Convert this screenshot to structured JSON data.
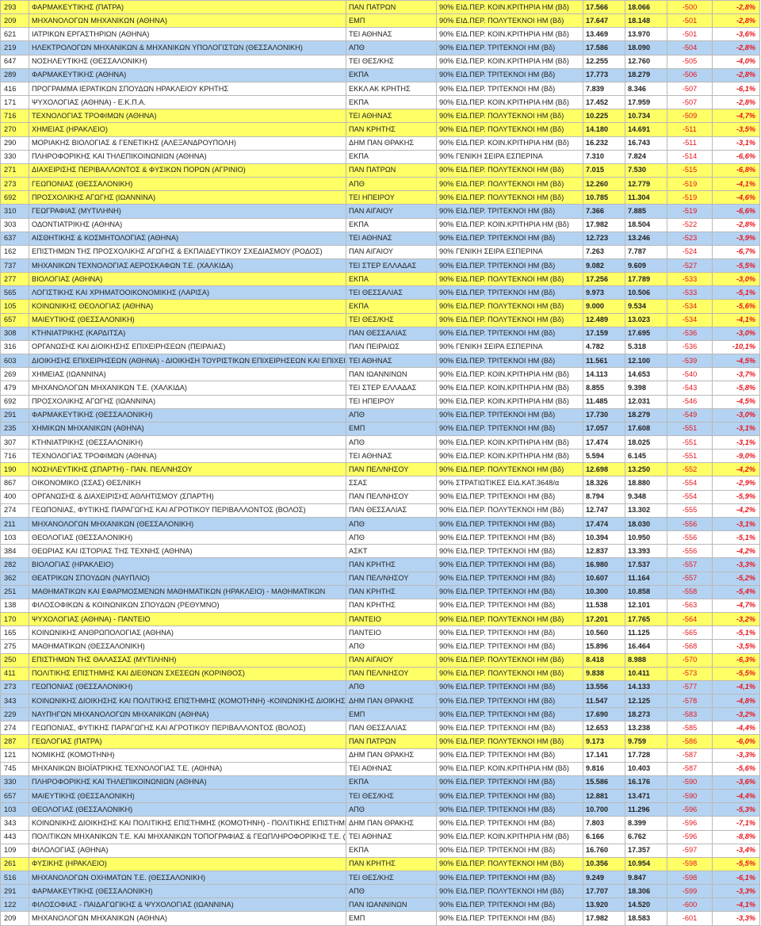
{
  "rows": [
    {
      "c": "yellow",
      "code": "293",
      "name": "ΦΑΡΜΑΚΕΥΤΙΚΗΣ (ΠΑΤΡΑ)",
      "inst": "ΠΑΝ ΠΑΤΡΩΝ",
      "cat": "90% ΕΙΔ.ΠΕΡ. ΚΟΙΝ.ΚΡΙΤΗΡΙΑ ΗΜ (Βδ)",
      "a": "17.566",
      "b": "18.066",
      "d": "-500",
      "p": "-2,8%"
    },
    {
      "c": "yellow",
      "code": "209",
      "name": "ΜΗΧΑΝΟΛΟΓΩΝ ΜΗΧΑΝΙΚΩΝ (ΑΘΗΝΑ)",
      "inst": "ΕΜΠ",
      "cat": "90% ΕΙΔ.ΠΕΡ. ΠΟΛΥΤΕΚΝΟΙ ΗΜ (Βδ)",
      "a": "17.647",
      "b": "18.148",
      "d": "-501",
      "p": "-2,8%"
    },
    {
      "c": "white",
      "code": "621",
      "name": "ΙΑΤΡΙΚΩΝ ΕΡΓΑΣΤΗΡΙΩΝ (ΑΘΗΝΑ)",
      "inst": "ΤΕΙ ΑΘΗΝΑΣ",
      "cat": "90% ΕΙΔ.ΠΕΡ. ΚΟΙΝ.ΚΡΙΤΗΡΙΑ ΗΜ (Βδ)",
      "a": "13.469",
      "b": "13.970",
      "d": "-501",
      "p": "-3,6%"
    },
    {
      "c": "blue",
      "code": "219",
      "name": "ΗΛΕΚΤΡΟΛΟΓΩΝ ΜΗΧΑΝΙΚΩΝ & ΜΗΧΑΝΙΚΩΝ ΥΠΟΛΟΓΙΣΤΩΝ (ΘΕΣΣΑΛΟΝΙΚΗ)",
      "inst": "ΑΠΘ",
      "cat": "90% ΕΙΔ.ΠΕΡ. ΤΡΙΤΕΚΝΟΙ ΗΜ (Βδ)",
      "a": "17.586",
      "b": "18.090",
      "d": "-504",
      "p": "-2,8%"
    },
    {
      "c": "white",
      "code": "647",
      "name": "ΝΟΣΗΛΕΥΤΙΚΗΣ (ΘΕΣΣΑΛΟΝΙΚΗ)",
      "inst": "ΤΕΙ ΘΕΣ/ΚΗΣ",
      "cat": "90% ΕΙΔ.ΠΕΡ. ΚΟΙΝ.ΚΡΙΤΗΡΙΑ ΗΜ (Βδ)",
      "a": "12.255",
      "b": "12.760",
      "d": "-505",
      "p": "-4,0%"
    },
    {
      "c": "blue",
      "code": "289",
      "name": "ΦΑΡΜΑΚΕΥΤΙΚΗΣ (ΑΘΗΝΑ)",
      "inst": "ΕΚΠΑ",
      "cat": "90% ΕΙΔ.ΠΕΡ. ΤΡΙΤΕΚΝΟΙ ΗΜ (Βδ)",
      "a": "17.773",
      "b": "18.279",
      "d": "-506",
      "p": "-2,8%"
    },
    {
      "c": "white",
      "code": "416",
      "name": "ΠΡΟΓΡΑΜΜΑ ΙΕΡΑΤΙΚΩΝ ΣΠΟΥΔΩΝ ΗΡΑΚΛΕΙΟΥ ΚΡΗΤΗΣ",
      "inst": "ΕΚΚΛ ΑΚ ΚΡΗΤΗΣ",
      "cat": "90% ΕΙΔ.ΠΕΡ. ΤΡΙΤΕΚΝΟΙ ΗΜ (Βδ)",
      "a": "7.839",
      "b": "8.346",
      "d": "-507",
      "p": "-6,1%"
    },
    {
      "c": "white",
      "code": "171",
      "name": "ΨΥΧΟΛΟΓΙΑΣ (ΑΘΗΝΑ) - Ε.Κ.Π.Α.",
      "inst": "ΕΚΠΑ",
      "cat": "90% ΕΙΔ.ΠΕΡ. ΚΟΙΝ.ΚΡΙΤΗΡΙΑ ΗΜ (Βδ)",
      "a": "17.452",
      "b": "17.959",
      "d": "-507",
      "p": "-2,8%"
    },
    {
      "c": "yellow",
      "code": "716",
      "name": "ΤΕΧΝΟΛΟΓΙΑΣ ΤΡΟΦΙΜΩΝ (ΑΘΗΝΑ)",
      "inst": "ΤΕΙ ΑΘΗΝΑΣ",
      "cat": "90% ΕΙΔ.ΠΕΡ. ΠΟΛΥΤΕΚΝΟΙ ΗΜ (Βδ)",
      "a": "10.225",
      "b": "10.734",
      "d": "-509",
      "p": "-4,7%"
    },
    {
      "c": "yellow",
      "code": "270",
      "name": "ΧΗΜΕΙΑΣ (ΗΡΑΚΛΕΙΟ)",
      "inst": "ΠΑΝ ΚΡΗΤΗΣ",
      "cat": "90% ΕΙΔ.ΠΕΡ. ΠΟΛΥΤΕΚΝΟΙ ΗΜ (Βδ)",
      "a": "14.180",
      "b": "14.691",
      "d": "-511",
      "p": "-3,5%"
    },
    {
      "c": "white",
      "code": "290",
      "name": "ΜΟΡΙΑΚΗΣ ΒΙΟΛΟΓΙΑΣ & ΓΕΝΕΤΙΚΗΣ (ΑΛΕΞΑΝΔΡΟΥΠΟΛΗ)",
      "inst": "ΔΗΜ ΠΑΝ ΘΡΑΚΗΣ",
      "cat": "90% ΕΙΔ.ΠΕΡ. ΚΟΙΝ.ΚΡΙΤΗΡΙΑ ΗΜ (Βδ)",
      "a": "16.232",
      "b": "16.743",
      "d": "-511",
      "p": "-3,1%"
    },
    {
      "c": "white",
      "code": "330",
      "name": "ΠΛΗΡΟΦΟΡΙΚΗΣ ΚΑΙ ΤΗΛΕΠΙΚΟΙΝΩΝΙΩΝ (ΑΘΗΝΑ)",
      "inst": "ΕΚΠΑ",
      "cat": "90% ΓΕΝΙΚΗ  ΣΕΙΡΑ ΕΣΠΕΡΙΝΑ",
      "a": "7.310",
      "b": "7.824",
      "d": "-514",
      "p": "-6,6%"
    },
    {
      "c": "yellow",
      "code": "271",
      "name": "ΔΙΑΧΕΙΡΙΣΗΣ ΠΕΡΙΒΑΛΛΟΝΤΟΣ & ΦΥΣΙΚΩΝ ΠΟΡΩΝ (ΑΓΡΙΝΙΟ)",
      "inst": "ΠΑΝ ΠΑΤΡΩΝ",
      "cat": "90% ΕΙΔ.ΠΕΡ. ΠΟΛΥΤΕΚΝΟΙ ΗΜ (Βδ)",
      "a": "7.015",
      "b": "7.530",
      "d": "-515",
      "p": "-6,8%"
    },
    {
      "c": "yellow",
      "code": "273",
      "name": "ΓΕΩΠΟΝΙΑΣ (ΘΕΣΣΑΛΟΝΙΚΗ)",
      "inst": "ΑΠΘ",
      "cat": "90% ΕΙΔ.ΠΕΡ. ΠΟΛΥΤΕΚΝΟΙ ΗΜ (Βδ)",
      "a": "12.260",
      "b": "12.779",
      "d": "-519",
      "p": "-4,1%"
    },
    {
      "c": "yellow",
      "code": "692",
      "name": "ΠΡΟΣΧΟΛΙΚΗΣ ΑΓΩΓΗΣ (ΙΩΑΝΝΙΝΑ)",
      "inst": "ΤΕΙ ΗΠΕΙΡΟΥ",
      "cat": "90% ΕΙΔ.ΠΕΡ. ΠΟΛΥΤΕΚΝΟΙ ΗΜ (Βδ)",
      "a": "10.785",
      "b": "11.304",
      "d": "-519",
      "p": "-4,6%"
    },
    {
      "c": "blue",
      "code": "310",
      "name": "ΓΕΩΓΡΑΦΙΑΣ (ΜΥΤΙΛΗΝΗ)",
      "inst": "ΠΑΝ ΑΙΓΑΙΟΥ",
      "cat": "90% ΕΙΔ.ΠΕΡ. ΤΡΙΤΕΚΝΟΙ ΗΜ (Βδ)",
      "a": "7.366",
      "b": "7.885",
      "d": "-519",
      "p": "-6,6%"
    },
    {
      "c": "white",
      "code": "303",
      "name": "ΟΔΟΝΤΙΑΤΡΙΚΗΣ (ΑΘΗΝΑ)",
      "inst": "ΕΚΠΑ",
      "cat": "90% ΕΙΔ.ΠΕΡ. ΚΟΙΝ.ΚΡΙΤΗΡΙΑ ΗΜ (Βδ)",
      "a": "17.982",
      "b": "18.504",
      "d": "-522",
      "p": "-2,8%"
    },
    {
      "c": "blue",
      "code": "637",
      "name": "ΑΙΣΘΗΤΙΚΗΣ & ΚΟΣΜΗΤΟΛΟΓΙΑΣ (ΑΘΗΝΑ)",
      "inst": "ΤΕΙ ΑΘΗΝΑΣ",
      "cat": "90% ΕΙΔ.ΠΕΡ. ΤΡΙΤΕΚΝΟΙ ΗΜ (Βδ)",
      "a": "12.723",
      "b": "13.246",
      "d": "-523",
      "p": "-3,9%"
    },
    {
      "c": "white",
      "code": "162",
      "name": "ΕΠΙΣΤΗΜΩΝ ΤΗΣ ΠΡΟΣΧΟΛΙΚΗΣ ΑΓΩΓΗΣ & ΕΚΠΑΙΔΕΥΤΙΚΟΥ ΣΧΕΔΙΑΣΜΟΥ (ΡΟΔΟΣ)",
      "inst": "ΠΑΝ ΑΙΓΑΙΟΥ",
      "cat": "90% ΓΕΝΙΚΗ  ΣΕΙΡΑ ΕΣΠΕΡΙΝΑ",
      "a": "7.263",
      "b": "7.787",
      "d": "-524",
      "p": "-6,7%"
    },
    {
      "c": "blue",
      "code": "737",
      "name": "ΜΗΧΑΝΙΚΩΝ ΤΕΧΝΟΛΟΓΙΑΣ ΑΕΡΟΣΚΑΦΩΝ Τ.Ε. (ΧΑΛΚΙΔΑ)",
      "inst": "ΤΕΙ  ΣΤΕΡ ΕΛΛΑΔΑΣ",
      "cat": "90% ΕΙΔ.ΠΕΡ. ΤΡΙΤΕΚΝΟΙ ΗΜ (Βδ)",
      "a": "9.082",
      "b": "9.609",
      "d": "-527",
      "p": "-5,5%"
    },
    {
      "c": "yellow",
      "code": "277",
      "name": "ΒΙΟΛΟΓΙΑΣ (ΑΘΗΝΑ)",
      "inst": "ΕΚΠΑ",
      "cat": "90% ΕΙΔ.ΠΕΡ. ΠΟΛΥΤΕΚΝΟΙ ΗΜ (Βδ)",
      "a": "17.256",
      "b": "17.789",
      "d": "-533",
      "p": "-3,0%"
    },
    {
      "c": "blue",
      "code": "565",
      "name": "ΛΟΓΙΣΤΙΚΗΣ ΚΑΙ ΧΡΗΜΑΤΟΟΙΚΟΝΟΜΙΚΗΣ (ΛΑΡΙΣΑ)",
      "inst": "ΤΕΙ ΘΕΣΣΑΛΙΑΣ",
      "cat": "90% ΕΙΔ.ΠΕΡ. ΤΡΙΤΕΚΝΟΙ ΗΜ (Βδ)",
      "a": "9.973",
      "b": "10.506",
      "d": "-533",
      "p": "-5,1%"
    },
    {
      "c": "yellow",
      "code": "105",
      "name": "ΚΟΙΝΩΝΙΚΗΣ ΘΕΟΛΟΓΙΑΣ (ΑΘΗΝΑ)",
      "inst": "ΕΚΠΑ",
      "cat": "90% ΕΙΔ.ΠΕΡ. ΠΟΛΥΤΕΚΝΟΙ ΗΜ (Βδ)",
      "a": "9.000",
      "b": "9.534",
      "d": "-534",
      "p": "-5,6%"
    },
    {
      "c": "yellow",
      "code": "657",
      "name": "ΜΑΙΕΥΤΙΚΗΣ (ΘΕΣΣΑΛΟΝΙΚΗ)",
      "inst": "ΤΕΙ ΘΕΣ/ΚΗΣ",
      "cat": "90% ΕΙΔ.ΠΕΡ. ΠΟΛΥΤΕΚΝΟΙ ΗΜ (Βδ)",
      "a": "12.489",
      "b": "13.023",
      "d": "-534",
      "p": "-4,1%"
    },
    {
      "c": "blue",
      "code": "308",
      "name": "ΚΤΗΝΙΑΤΡΙΚΗΣ (ΚΑΡΔΙΤΣΑ)",
      "inst": "ΠΑΝ ΘΕΣΣΑΛΙΑΣ",
      "cat": "90% ΕΙΔ.ΠΕΡ. ΤΡΙΤΕΚΝΟΙ ΗΜ (Βδ)",
      "a": "17.159",
      "b": "17.695",
      "d": "-536",
      "p": "-3,0%"
    },
    {
      "c": "white",
      "code": "316",
      "name": "ΟΡΓΑΝΩΣΗΣ ΚΑΙ ΔΙΟΙΚΗΣΗΣ ΕΠΙΧΕΙΡΗΣΕΩΝ (ΠΕΙΡΑΙΑΣ)",
      "inst": "ΠΑΝ ΠΕΙΡΑΙΩΣ",
      "cat": "90% ΓΕΝΙΚΗ  ΣΕΙΡΑ ΕΣΠΕΡΙΝΑ",
      "a": "4.782",
      "b": "5.318",
      "d": "-536",
      "p": "-10,1%"
    },
    {
      "c": "blue",
      "code": "603",
      "name": "ΔΙΟΙΚΗΣΗΣ ΕΠΙΧΕΙΡΗΣΕΩΝ (ΑΘΗΝΑ) - ΔΙΟΙΚΗΣΗ ΤΟΥΡΙΣΤΙΚΩΝ ΕΠΙΧΕΙΡΗΣΕΩΝ ΚΑΙ ΕΠΙΧΕΙΡΗΣΕΩΝ",
      "inst": "ΤΕΙ ΑΘΗΝΑΣ",
      "cat": "90% ΕΙΔ.ΠΕΡ. ΤΡΙΤΕΚΝΟΙ ΗΜ (Βδ)",
      "a": "11.561",
      "b": "12.100",
      "d": "-539",
      "p": "-4,5%"
    },
    {
      "c": "white",
      "code": "269",
      "name": "ΧΗΜΕΙΑΣ (ΙΩΑΝΝΙΝΑ)",
      "inst": "ΠΑΝ ΙΩΑΝΝΙΝΩΝ",
      "cat": "90% ΕΙΔ.ΠΕΡ. ΚΟΙΝ.ΚΡΙΤΗΡΙΑ ΗΜ (Βδ)",
      "a": "14.113",
      "b": "14.653",
      "d": "-540",
      "p": "-3,7%"
    },
    {
      "c": "white",
      "code": "479",
      "name": "ΜΗΧΑΝΟΛΟΓΩΝ ΜΗΧΑΝΙΚΩΝ Τ.Ε. (ΧΑΛΚΙΔΑ)",
      "inst": "ΤΕΙ  ΣΤΕΡ ΕΛΛΑΔΑΣ",
      "cat": "90% ΕΙΔ.ΠΕΡ. ΚΟΙΝ.ΚΡΙΤΗΡΙΑ ΗΜ (Βδ)",
      "a": "8.855",
      "b": "9.398",
      "d": "-543",
      "p": "-5,8%"
    },
    {
      "c": "white",
      "code": "692",
      "name": "ΠΡΟΣΧΟΛΙΚΗΣ ΑΓΩΓΗΣ (ΙΩΑΝΝΙΝΑ)",
      "inst": "ΤΕΙ ΗΠΕΙΡΟΥ",
      "cat": "90% ΕΙΔ.ΠΕΡ. ΚΟΙΝ.ΚΡΙΤΗΡΙΑ ΗΜ (Βδ)",
      "a": "11.485",
      "b": "12.031",
      "d": "-546",
      "p": "-4,5%"
    },
    {
      "c": "blue",
      "code": "291",
      "name": "ΦΑΡΜΑΚΕΥΤΙΚΗΣ (ΘΕΣΣΑΛΟΝΙΚΗ)",
      "inst": "ΑΠΘ",
      "cat": "90% ΕΙΔ.ΠΕΡ. ΤΡΙΤΕΚΝΟΙ ΗΜ (Βδ)",
      "a": "17.730",
      "b": "18.279",
      "d": "-549",
      "p": "-3,0%"
    },
    {
      "c": "blue",
      "code": "235",
      "name": "ΧΗΜΙΚΩΝ ΜΗΧΑΝΙΚΩΝ (ΑΘΗΝΑ)",
      "inst": "ΕΜΠ",
      "cat": "90% ΕΙΔ.ΠΕΡ. ΤΡΙΤΕΚΝΟΙ ΗΜ (Βδ)",
      "a": "17.057",
      "b": "17.608",
      "d": "-551",
      "p": "-3,1%"
    },
    {
      "c": "white",
      "code": "307",
      "name": "ΚΤΗΝΙΑΤΡΙΚΗΣ (ΘΕΣΣΑΛΟΝΙΚΗ)",
      "inst": "ΑΠΘ",
      "cat": "90% ΕΙΔ.ΠΕΡ. ΚΟΙΝ.ΚΡΙΤΗΡΙΑ ΗΜ (Βδ)",
      "a": "17.474",
      "b": "18.025",
      "d": "-551",
      "p": "-3,1%"
    },
    {
      "c": "white",
      "code": "716",
      "name": "ΤΕΧΝΟΛΟΓΙΑΣ ΤΡΟΦΙΜΩΝ (ΑΘΗΝΑ)",
      "inst": "ΤΕΙ ΑΘΗΝΑΣ",
      "cat": "90% ΕΙΔ.ΠΕΡ. ΚΟΙΝ.ΚΡΙΤΗΡΙΑ ΗΜ (Βδ)",
      "a": "5.594",
      "b": "6.145",
      "d": "-551",
      "p": "-9,0%"
    },
    {
      "c": "yellow",
      "code": "190",
      "name": "ΝΟΣΗΛΕΥΤΙΚΗΣ (ΣΠΑΡΤΗ) - ΠΑΝ. ΠΕΛ/ΝΗΣΟΥ",
      "inst": "ΠΑΝ ΠΕΛ/ΝΗΣΟΥ",
      "cat": "90% ΕΙΔ.ΠΕΡ. ΠΟΛΥΤΕΚΝΟΙ ΗΜ (Βδ)",
      "a": "12.698",
      "b": "13.250",
      "d": "-552",
      "p": "-4,2%"
    },
    {
      "c": "white",
      "code": "867",
      "name": "ΟΙΚΟΝΟΜΙΚΟ (ΣΣΑΣ) ΘΕΣ/ΝΙΚΗ",
      "inst": "ΣΣΑΣ",
      "cat": "90% ΣΤΡΑΤΙΩΤΙΚΕΣ ΕΙΔ.ΚΑΤ.3648/α",
      "a": "18.326",
      "b": "18.880",
      "d": "-554",
      "p": "-2,9%"
    },
    {
      "c": "white",
      "code": "400",
      "name": "ΟΡΓΑΝΩΣΗΣ & ΔΙΑΧΕΙΡΙΣΗΣ ΑΘΛΗΤΙΣΜΟΥ (ΣΠΑΡΤΗ)",
      "inst": "ΠΑΝ ΠΕΛ/ΝΗΣΟΥ",
      "cat": "90% ΕΙΔ.ΠΕΡ. ΤΡΙΤΕΚΝΟΙ ΗΜ (Βδ)",
      "a": "8.794",
      "b": "9.348",
      "d": "-554",
      "p": "-5,9%"
    },
    {
      "c": "white",
      "code": "274",
      "name": "ΓΕΩΠΟΝΙΑΣ, ΦΥΤΙΚΗΣ ΠΑΡΑΓΩΓΗΣ ΚΑΙ ΑΓΡΟΤΙΚΟΥ ΠΕΡΙΒΑΛΛΟΝΤΟΣ (ΒΟΛΟΣ)",
      "inst": "ΠΑΝ ΘΕΣΣΑΛΙΑΣ",
      "cat": "90% ΕΙΔ.ΠΕΡ. ΠΟΛΥΤΕΚΝΟΙ ΗΜ (Βδ)",
      "a": "12.747",
      "b": "13.302",
      "d": "-555",
      "p": "-4,2%"
    },
    {
      "c": "blue",
      "code": "211",
      "name": "ΜΗΧΑΝΟΛΟΓΩΝ ΜΗΧΑΝΙΚΩΝ (ΘΕΣΣΑΛΟΝΙΚΗ)",
      "inst": "ΑΠΘ",
      "cat": "90% ΕΙΔ.ΠΕΡ. ΤΡΙΤΕΚΝΟΙ ΗΜ (Βδ)",
      "a": "17.474",
      "b": "18.030",
      "d": "-556",
      "p": "-3,1%"
    },
    {
      "c": "white",
      "code": "103",
      "name": "ΘΕΟΛΟΓΙΑΣ (ΘΕΣΣΑΛΟΝΙΚΗ)",
      "inst": "ΑΠΘ",
      "cat": "90% ΕΙΔ.ΠΕΡ. ΤΡΙΤΕΚΝΟΙ ΗΜ (Βδ)",
      "a": "10.394",
      "b": "10.950",
      "d": "-556",
      "p": "-5,1%"
    },
    {
      "c": "white",
      "code": "384",
      "name": "ΘΕΩΡΙΑΣ ΚΑΙ ΙΣΤΟΡΙΑΣ ΤΗΣ ΤΕΧΝΗΣ (ΑΘΗΝΑ)",
      "inst": "ΑΣΚΤ",
      "cat": "90% ΕΙΔ.ΠΕΡ. ΤΡΙΤΕΚΝΟΙ ΗΜ (Βδ)",
      "a": "12.837",
      "b": "13.393",
      "d": "-556",
      "p": "-4,2%"
    },
    {
      "c": "blue",
      "code": "282",
      "name": "ΒΙΟΛΟΓΙΑΣ (ΗΡΑΚΛΕΙΟ)",
      "inst": "ΠΑΝ ΚΡΗΤΗΣ",
      "cat": "90% ΕΙΔ.ΠΕΡ. ΤΡΙΤΕΚΝΟΙ ΗΜ (Βδ)",
      "a": "16.980",
      "b": "17.537",
      "d": "-557",
      "p": "-3,3%"
    },
    {
      "c": "blue",
      "code": "362",
      "name": "ΘΕΑΤΡΙΚΩΝ ΣΠΟΥΔΩΝ (ΝΑΥΠΛΙΟ)",
      "inst": "ΠΑΝ ΠΕΛ/ΝΗΣΟΥ",
      "cat": "90% ΕΙΔ.ΠΕΡ. ΤΡΙΤΕΚΝΟΙ ΗΜ (Βδ)",
      "a": "10.607",
      "b": "11.164",
      "d": "-557",
      "p": "-5,2%"
    },
    {
      "c": "blue",
      "code": "251",
      "name": "ΜΑΘΗΜΑΤΙΚΩΝ ΚΑΙ ΕΦΑΡΜΟΣΜΕΝΩΝ ΜΑΘΗΜΑΤΙΚΩΝ (ΗΡΑΚΛΕΙΟ) - ΜΑΘΗΜΑΤΙΚΩΝ",
      "inst": "ΠΑΝ ΚΡΗΤΗΣ",
      "cat": "90% ΕΙΔ.ΠΕΡ. ΤΡΙΤΕΚΝΟΙ ΗΜ (Βδ)",
      "a": "10.300",
      "b": "10.858",
      "d": "-558",
      "p": "-5,4%"
    },
    {
      "c": "white",
      "code": "138",
      "name": "ΦΙΛΟΣΟΦΙΚΩΝ & ΚΟΙΝΩΝΙΚΩΝ ΣΠΟΥΔΩΝ (ΡΕΘΥΜΝΟ)",
      "inst": "ΠΑΝ ΚΡΗΤΗΣ",
      "cat": "90% ΕΙΔ.ΠΕΡ. ΤΡΙΤΕΚΝΟΙ ΗΜ (Βδ)",
      "a": "11.538",
      "b": "12.101",
      "d": "-563",
      "p": "-4,7%"
    },
    {
      "c": "yellow",
      "code": "170",
      "name": "ΨΥΧΟΛΟΓΙΑΣ (ΑΘΗΝΑ) - ΠΑΝΤΕΙΟ",
      "inst": "ΠΑΝΤΕΙΟ",
      "cat": "90% ΕΙΔ.ΠΕΡ. ΠΟΛΥΤΕΚΝΟΙ ΗΜ (Βδ)",
      "a": "17.201",
      "b": "17.765",
      "d": "-564",
      "p": "-3,2%"
    },
    {
      "c": "white",
      "code": "165",
      "name": "ΚΟΙΝΩΝΙΚΗΣ ΑΝΘΡΩΠΟΛΟΓΙΑΣ (ΑΘΗΝΑ)",
      "inst": "ΠΑΝΤΕΙΟ",
      "cat": "90% ΕΙΔ.ΠΕΡ. ΤΡΙΤΕΚΝΟΙ ΗΜ (Βδ)",
      "a": "10.560",
      "b": "11.125",
      "d": "-565",
      "p": "-5,1%"
    },
    {
      "c": "white",
      "code": "275",
      "name": "ΜΑΘΗΜΑΤΙΚΩΝ (ΘΕΣΣΑΛΟΝΙΚΗ)",
      "inst": "ΑΠΘ",
      "cat": "90% ΕΙΔ.ΠΕΡ. ΤΡΙΤΕΚΝΟΙ ΗΜ (Βδ)",
      "a": "15.896",
      "b": "16.464",
      "d": "-568",
      "p": "-3,5%"
    },
    {
      "c": "yellow",
      "code": "250",
      "name": "ΕΠΙΣΤΗΜΩΝ ΤΗΣ ΘΑΛΑΣΣΑΣ (ΜΥΤΙΛΗΝΗ)",
      "inst": "ΠΑΝ ΑΙΓΑΙΟΥ",
      "cat": "90% ΕΙΔ.ΠΕΡ. ΠΟΛΥΤΕΚΝΟΙ ΗΜ (Βδ)",
      "a": "8.418",
      "b": "8.988",
      "d": "-570",
      "p": "-6,3%"
    },
    {
      "c": "yellow",
      "code": "411",
      "name": "ΠΟΛΙΤΙΚΗΣ ΕΠΙΣΤΗΜΗΣ ΚΑΙ ΔΙΕΘΝΩΝ ΣΧΕΣΕΩΝ (ΚΟΡΙΝΘΟΣ)",
      "inst": "ΠΑΝ ΠΕΛ/ΝΗΣΟΥ",
      "cat": "90% ΕΙΔ.ΠΕΡ. ΠΟΛΥΤΕΚΝΟΙ ΗΜ (Βδ)",
      "a": "9.838",
      "b": "10.411",
      "d": "-573",
      "p": "-5,5%"
    },
    {
      "c": "blue",
      "code": "273",
      "name": "ΓΕΩΠΟΝΙΑΣ (ΘΕΣΣΑΛΟΝΙΚΗ)",
      "inst": "ΑΠΘ",
      "cat": "90% ΕΙΔ.ΠΕΡ. ΤΡΙΤΕΚΝΟΙ ΗΜ (Βδ)",
      "a": "13.556",
      "b": "14.133",
      "d": "-577",
      "p": "-4,1%"
    },
    {
      "c": "blue",
      "code": "343",
      "name": "ΚΟΙΝΩΝΙΚΗΣ ΔΙΟΙΚΗΣΗΣ ΚΑΙ ΠΟΛΙΤΙΚΗΣ ΕΠΙΣΤΗΜΗΣ (ΚΟΜΟΤΗΝΗ) -ΚΟΙΝΩΝΙΚΗΣ ΔΙΟΙΚΗΣΗΣ",
      "inst": "ΔΗΜ ΠΑΝ ΘΡΑΚΗΣ",
      "cat": "90% ΕΙΔ.ΠΕΡ. ΤΡΙΤΕΚΝΟΙ ΗΜ (Βδ)",
      "a": "11.547",
      "b": "12.125",
      "d": "-578",
      "p": "-4,8%"
    },
    {
      "c": "blue",
      "code": "229",
      "name": "ΝΑΥΠΗΓΩΝ ΜΗΧΑΝΟΛΟΓΩΝ ΜΗΧΑΝΙΚΩΝ (ΑΘΗΝΑ)",
      "inst": "ΕΜΠ",
      "cat": "90% ΕΙΔ.ΠΕΡ. ΤΡΙΤΕΚΝΟΙ ΗΜ (Βδ)",
      "a": "17.690",
      "b": "18.273",
      "d": "-583",
      "p": "-3,2%"
    },
    {
      "c": "white",
      "code": "274",
      "name": "ΓΕΩΠΟΝΙΑΣ, ΦΥΤΙΚΗΣ ΠΑΡΑΓΩΓΗΣ ΚΑΙ ΑΓΡΟΤΙΚΟΥ ΠΕΡΙΒΑΛΛΟΝΤΟΣ (ΒΟΛΟΣ)",
      "inst": "ΠΑΝ ΘΕΣΣΑΛΙΑΣ",
      "cat": "90% ΕΙΔ.ΠΕΡ. ΤΡΙΤΕΚΝΟΙ ΗΜ (Βδ)",
      "a": "12.653",
      "b": "13.238",
      "d": "-585",
      "p": "-4,4%"
    },
    {
      "c": "yellow",
      "code": "287",
      "name": "ΓΕΩΛΟΓΙΑΣ (ΠΑΤΡΑ)",
      "inst": "ΠΑΝ ΠΑΤΡΩΝ",
      "cat": "90% ΕΙΔ.ΠΕΡ. ΠΟΛΥΤΕΚΝΟΙ ΗΜ (Βδ)",
      "a": "9.173",
      "b": "9.759",
      "d": "-586",
      "p": "-6,0%"
    },
    {
      "c": "white",
      "code": "121",
      "name": "ΝΟΜΙΚΗΣ (ΚΟΜΟΤΗΝΗ)",
      "inst": "ΔΗΜ ΠΑΝ ΘΡΑΚΗΣ",
      "cat": "90% ΕΙΔ.ΠΕΡ. ΤΡΙΤΕΚΝΟΙ ΗΜ (Βδ)",
      "a": "17.141",
      "b": "17.728",
      "d": "-587",
      "p": "-3,3%"
    },
    {
      "c": "white",
      "code": "745",
      "name": "ΜΗΧΑΝΙΚΩΝ ΒΙΟΪΑΤΡΙΚΗΣ ΤΕΧΝΟΛΟΓΙΑΣ Τ.Ε. (ΑΘΗΝΑ)",
      "inst": "ΤΕΙ ΑΘΗΝΑΣ",
      "cat": "90% ΕΙΔ.ΠΕΡ. ΚΟΙΝ.ΚΡΙΤΗΡΙΑ ΗΜ (Βδ)",
      "a": "9.816",
      "b": "10.403",
      "d": "-587",
      "p": "-5,6%"
    },
    {
      "c": "blue",
      "code": "330",
      "name": "ΠΛΗΡΟΦΟΡΙΚΗΣ ΚΑΙ ΤΗΛΕΠΙΚΟΙΝΩΝΙΩΝ (ΑΘΗΝΑ)",
      "inst": "ΕΚΠΑ",
      "cat": "90% ΕΙΔ.ΠΕΡ. ΤΡΙΤΕΚΝΟΙ ΗΜ (Βδ)",
      "a": "15.586",
      "b": "16.176",
      "d": "-590",
      "p": "-3,6%"
    },
    {
      "c": "blue",
      "code": "657",
      "name": "ΜΑΙΕΥΤΙΚΗΣ (ΘΕΣΣΑΛΟΝΙΚΗ)",
      "inst": "ΤΕΙ ΘΕΣ/ΚΗΣ",
      "cat": "90% ΕΙΔ.ΠΕΡ. ΤΡΙΤΕΚΝΟΙ ΗΜ (Βδ)",
      "a": "12.881",
      "b": "13.471",
      "d": "-590",
      "p": "-4,4%"
    },
    {
      "c": "blue",
      "code": "103",
      "name": "ΘΕΟΛΟΓΙΑΣ (ΘΕΣΣΑΛΟΝΙΚΗ)",
      "inst": "ΑΠΘ",
      "cat": "90% ΕΙΔ.ΠΕΡ. ΤΡΙΤΕΚΝΟΙ ΗΜ (Βδ)",
      "a": "10.700",
      "b": "11.296",
      "d": "-596",
      "p": "-5,3%"
    },
    {
      "c": "white",
      "code": "343",
      "name": "ΚΟΙΝΩΝΙΚΗΣ ΔΙΟΙΚΗΣΗΣ ΚΑΙ ΠΟΛΙΤΙΚΗΣ ΕΠΙΣΤΗΜΗΣ (ΚΟΜΟΤΗΝΗ) - ΠΟΛΙΤΙΚΗΣ ΕΠΙΣΤΗΜΗΣ",
      "inst": "ΔΗΜ ΠΑΝ ΘΡΑΚΗΣ",
      "cat": "90% ΕΙΔ.ΠΕΡ. ΤΡΙΤΕΚΝΟΙ ΗΜ (Βδ)",
      "a": "7.803",
      "b": "8.399",
      "d": "-596",
      "p": "-7,1%"
    },
    {
      "c": "white",
      "code": "443",
      "name": "ΠΟΛΙΤΙΚΩΝ ΜΗΧΑΝΙΚΩΝ Τ.Ε. ΚΑΙ ΜΗΧΑΝΙΚΩΝ ΤΟΠΟΓΡΑΦΙΑΣ & ΓΕΩΠΛΗΡΟΦΟΡΙΚΗΣ Τ.Ε. (ΑΘ",
      "inst": "ΤΕΙ ΑΘΗΝΑΣ",
      "cat": "90% ΕΙΔ.ΠΕΡ. ΚΟΙΝ.ΚΡΙΤΗΡΙΑ ΗΜ (Βδ)",
      "a": "6.166",
      "b": "6.762",
      "d": "-596",
      "p": "-8,8%"
    },
    {
      "c": "white",
      "code": "109",
      "name": "ΦΙΛΟΛΟΓΙΑΣ (ΑΘΗΝΑ)",
      "inst": "ΕΚΠΑ",
      "cat": "90% ΕΙΔ.ΠΕΡ. ΤΡΙΤΕΚΝΟΙ ΗΜ (Βδ)",
      "a": "16.760",
      "b": "17.357",
      "d": "-597",
      "p": "-3,4%"
    },
    {
      "c": "yellow",
      "code": "261",
      "name": "ΦΥΣΙΚΗΣ (ΗΡΑΚΛΕΙΟ)",
      "inst": "ΠΑΝ ΚΡΗΤΗΣ",
      "cat": "90% ΕΙΔ.ΠΕΡ. ΠΟΛΥΤΕΚΝΟΙ ΗΜ (Βδ)",
      "a": "10.356",
      "b": "10.954",
      "d": "-598",
      "p": "-5,5%"
    },
    {
      "c": "blue",
      "code": "516",
      "name": "ΜΗΧΑΝΟΛΟΓΩΝ ΟΧΗΜΑΤΩΝ Τ.Ε. (ΘΕΣΣΑΛΟΝΙΚΗ)",
      "inst": "ΤΕΙ ΘΕΣ/ΚΗΣ",
      "cat": "90% ΕΙΔ.ΠΕΡ. ΤΡΙΤΕΚΝΟΙ ΗΜ (Βδ)",
      "a": "9.249",
      "b": "9.847",
      "d": "-598",
      "p": "-6,1%"
    },
    {
      "c": "blue",
      "code": "291",
      "name": "ΦΑΡΜΑΚΕΥΤΙΚΗΣ (ΘΕΣΣΑΛΟΝΙΚΗ)",
      "inst": "ΑΠΘ",
      "cat": "90% ΕΙΔ.ΠΕΡ. ΠΟΛΥΤΕΚΝΟΙ ΗΜ (Βδ)",
      "a": "17.707",
      "b": "18.306",
      "d": "-599",
      "p": "-3,3%"
    },
    {
      "c": "blue",
      "code": "122",
      "name": "ΦΙΛΟΣΟΦΙΑΣ - ΠΑΙΔΑΓΩΓΙΚΗΣ & ΨΥΧΟΛΟΓΙΑΣ (ΙΩΑΝΝΙΝΑ)",
      "inst": "ΠΑΝ ΙΩΑΝΝΙΝΩΝ",
      "cat": "90% ΕΙΔ.ΠΕΡ. ΤΡΙΤΕΚΝΟΙ ΗΜ (Βδ)",
      "a": "13.920",
      "b": "14.520",
      "d": "-600",
      "p": "-4,1%"
    },
    {
      "c": "white",
      "code": "209",
      "name": "ΜΗΧΑΝΟΛΟΓΩΝ ΜΗΧΑΝΙΚΩΝ (ΑΘΗΝΑ)",
      "inst": "ΕΜΠ",
      "cat": "90% ΕΙΔ.ΠΕΡ. ΤΡΙΤΕΚΝΟΙ ΗΜ (Βδ)",
      "a": "17.982",
      "b": "18.583",
      "d": "-601",
      "p": "-3,3%"
    }
  ]
}
